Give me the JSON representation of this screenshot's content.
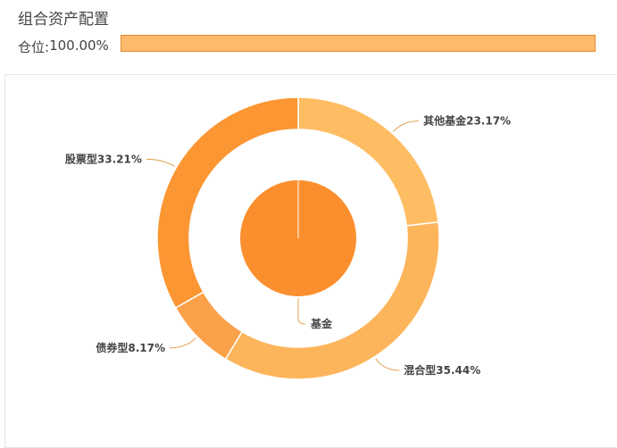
{
  "header": {
    "title": "组合资产配置",
    "position_label": "仓位:",
    "position_value": "100.00%"
  },
  "chart_data": {
    "type": "pie",
    "layout": "nested-donut",
    "progress": {
      "value": 100.0,
      "unit": "%"
    },
    "inner": {
      "slices": [
        {
          "name": "基金",
          "value": 100.0,
          "label": "基金",
          "color": "#fb8f2e"
        }
      ]
    },
    "outer": {
      "slices": [
        {
          "name": "其他基金",
          "value": 23.17,
          "label": "其他基金23.17%",
          "color": "#ffbd63"
        },
        {
          "name": "混合型",
          "value": 35.44,
          "label": "混合型35.44%",
          "color": "#fdb55c"
        },
        {
          "name": "债券型",
          "value": 8.17,
          "label": "债券型8.17%",
          "color": "#fba14a"
        },
        {
          "name": "股票型",
          "value": 33.21,
          "label": "股票型33.21%",
          "color": "#fb9632"
        }
      ]
    },
    "colors": {
      "progress_fill": "#fdb96c",
      "progress_border": "#e08a2e",
      "leader_line": "#e0a050"
    }
  }
}
